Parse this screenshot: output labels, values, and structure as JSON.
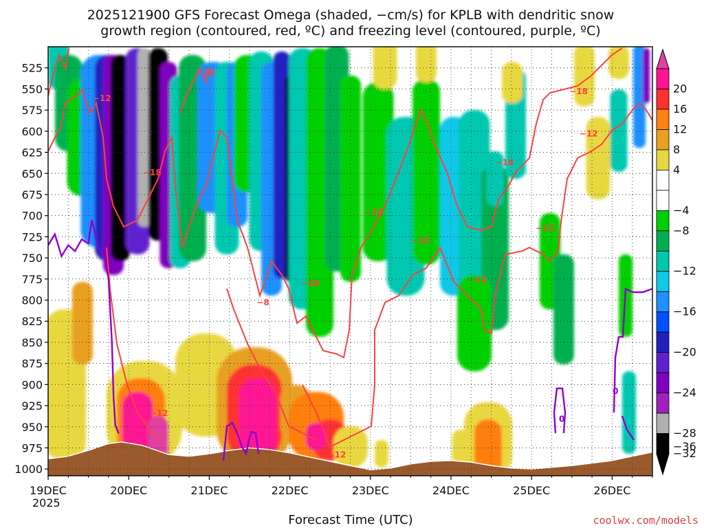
{
  "chart_data": {
    "type": "heatmap",
    "title_lines": [
      "2025121900 GFS Forecast Omega (shaded, −cm/s) for KPLB with dendritic snow",
      "growth region (contoured, red, ºC) and freezing level (contoured, purple, ºC)"
    ],
    "xlabel": "Forecast Time (UTC)",
    "ylabel": "",
    "x_ticks": [
      {
        "label": "19DEC",
        "sub": "2025",
        "hour": 0
      },
      {
        "label": "20DEC",
        "sub": "",
        "hour": 24
      },
      {
        "label": "21DEC",
        "sub": "",
        "hour": 48
      },
      {
        "label": "22DEC",
        "sub": "",
        "hour": 72
      },
      {
        "label": "23DEC",
        "sub": "",
        "hour": 96
      },
      {
        "label": "24DEC",
        "sub": "",
        "hour": 120
      },
      {
        "label": "25DEC",
        "sub": "",
        "hour": 144
      },
      {
        "label": "26DEC",
        "sub": "",
        "hour": 168
      }
    ],
    "x_range_hours": [
      0,
      180
    ],
    "y_ticks": [
      525,
      550,
      575,
      600,
      625,
      650,
      675,
      700,
      725,
      750,
      775,
      800,
      825,
      850,
      875,
      900,
      925,
      950,
      975,
      1000
    ],
    "y_range_hpa": [
      500,
      1008
    ],
    "colorbar": {
      "levels": [
        {
          "label": "",
          "color": "#e040a0"
        },
        {
          "label": "20",
          "color": "#ff1493"
        },
        {
          "label": "16",
          "color": "#ff3030"
        },
        {
          "label": "12",
          "color": "#ff7f10"
        },
        {
          "label": "8",
          "color": "#e8a020"
        },
        {
          "label": "4",
          "color": "#e8d840"
        },
        {
          "label": "",
          "color": "#ffffff"
        },
        {
          "label": "−4",
          "color": "#ffffff"
        },
        {
          "label": "−8",
          "color": "#00d000"
        },
        {
          "label": "",
          "color": "#00b050"
        },
        {
          "label": "−12",
          "color": "#00c8b0"
        },
        {
          "label": "",
          "color": "#10c8e8"
        },
        {
          "label": "−16",
          "color": "#1e90ff"
        },
        {
          "label": "",
          "color": "#0050ff"
        },
        {
          "label": "−20",
          "color": "#2020c0"
        },
        {
          "label": "",
          "color": "#6020d0"
        },
        {
          "label": "−24",
          "color": "#8000c0"
        },
        {
          "label": "",
          "color": "#a020c0"
        },
        {
          "label": "−28",
          "color": "#b0b0b0"
        },
        {
          "label": "−32",
          "color": "#000000"
        },
        {
          "label": "−36",
          "color": "#000000"
        }
      ]
    },
    "contour_labels": [
      {
        "text": "−18",
        "hour": 47,
        "hpa": 530
      },
      {
        "text": "−12",
        "hour": 16,
        "hpa": 561
      },
      {
        "text": "−18",
        "hour": 31,
        "hpa": 649
      },
      {
        "text": "−12",
        "hour": 33,
        "hpa": 934
      },
      {
        "text": "−8",
        "hour": 64,
        "hpa": 803
      },
      {
        "text": "−18",
        "hour": 78,
        "hpa": 780
      },
      {
        "text": "−12",
        "hour": 86,
        "hpa": 983
      },
      {
        "text": "−18",
        "hour": 97,
        "hpa": 696
      },
      {
        "text": "−12",
        "hour": 111,
        "hpa": 729
      },
      {
        "text": "−18",
        "hour": 136,
        "hpa": 637
      },
      {
        "text": "−12",
        "hour": 128,
        "hpa": 776
      },
      {
        "text": "−12",
        "hour": 148,
        "hpa": 715
      },
      {
        "text": "−18",
        "hour": 158,
        "hpa": 553
      },
      {
        "text": "−12",
        "hour": 161,
        "hpa": 603
      },
      {
        "text": "0",
        "hour": 153,
        "hpa": 941
      },
      {
        "text": "0",
        "hour": 169,
        "hpa": 908
      }
    ],
    "terrain_hpa": [
      [
        0,
        988
      ],
      [
        6,
        985
      ],
      [
        12,
        978
      ],
      [
        18,
        970
      ],
      [
        22,
        968
      ],
      [
        28,
        972
      ],
      [
        36,
        983
      ],
      [
        42,
        985
      ],
      [
        48,
        982
      ],
      [
        54,
        978
      ],
      [
        60,
        975
      ],
      [
        66,
        977
      ],
      [
        72,
        981
      ],
      [
        78,
        986
      ],
      [
        84,
        991
      ],
      [
        90,
        996
      ],
      [
        96,
        1001
      ],
      [
        102,
        999
      ],
      [
        108,
        994
      ],
      [
        114,
        991
      ],
      [
        120,
        990
      ],
      [
        126,
        992
      ],
      [
        132,
        996
      ],
      [
        138,
        999
      ],
      [
        144,
        1000
      ],
      [
        150,
        998
      ],
      [
        156,
        996
      ],
      [
        162,
        993
      ],
      [
        168,
        990
      ],
      [
        174,
        985
      ],
      [
        180,
        980
      ]
    ],
    "freezing_level_hpa": [
      [
        0,
        735
      ],
      [
        2,
        722
      ],
      [
        4,
        748
      ],
      [
        6,
        735
      ],
      [
        8,
        742
      ],
      [
        10,
        728
      ],
      [
        12,
        733
      ],
      [
        13,
        705
      ],
      [
        15,
        738
      ],
      [
        17,
        752
      ],
      [
        18,
        775
      ],
      [
        19,
        850
      ],
      [
        19.5,
        915
      ],
      [
        20,
        948
      ],
      [
        21,
        958
      ]
    ]
  },
  "watermark": "coolwx.com/models"
}
